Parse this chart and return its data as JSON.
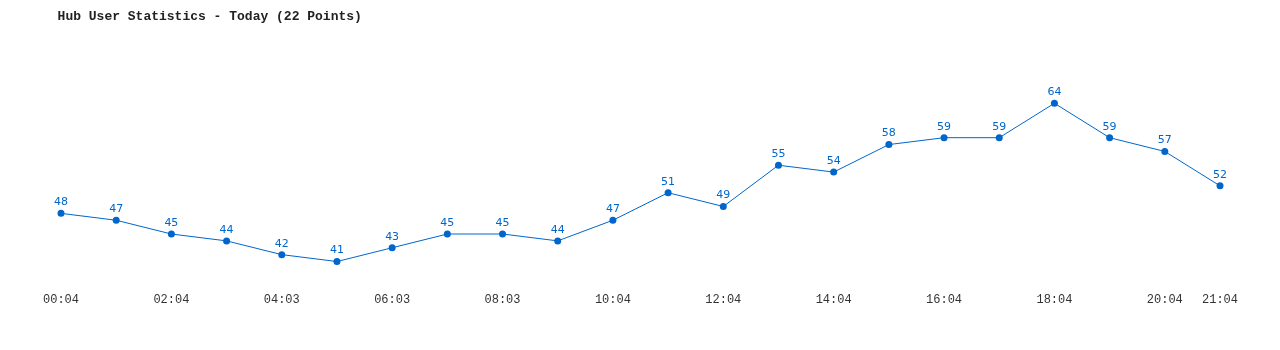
{
  "chart_data": {
    "type": "line",
    "title": "Hub User Statistics - Today (22 Points)",
    "categories": [
      "00:04",
      null,
      "02:04",
      null,
      "04:03",
      null,
      "06:03",
      null,
      "08:03",
      null,
      "10:04",
      null,
      "12:04",
      null,
      "14:04",
      null,
      "16:04",
      null,
      "18:04",
      null,
      "20:04",
      "21:04"
    ],
    "series": [
      {
        "color": "#0066cc",
        "values": [
          48,
          47,
          45,
          44,
          42,
          41,
          43,
          45,
          45,
          44,
          47,
          51,
          49,
          55,
          54,
          58,
          59,
          59,
          64,
          59,
          57,
          52
        ]
      }
    ],
    "data_labels": true,
    "marker": "circle",
    "line_style": "solid",
    "tick_labels": "x"
  }
}
